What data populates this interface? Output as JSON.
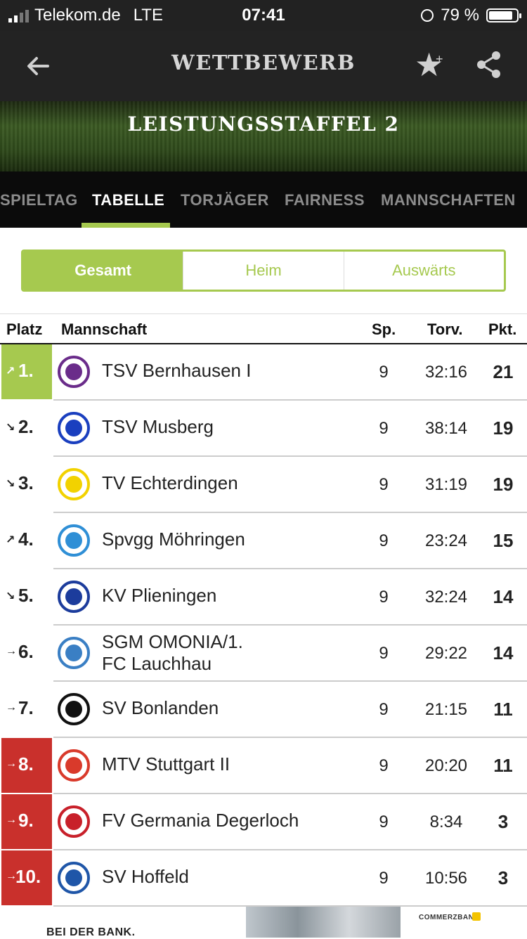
{
  "status": {
    "carrier": "Telekom.de",
    "network": "LTE",
    "time": "07:41",
    "battery": "79 %",
    "battery_level": 0.79
  },
  "appbar": {
    "title": "WETTBEWERB"
  },
  "banner": {
    "title": "LEISTUNGSSTAFFEL 2"
  },
  "tabs": [
    {
      "label": "SPIELTAG"
    },
    {
      "label": "TABELLE",
      "active": true
    },
    {
      "label": "TORJÄGER"
    },
    {
      "label": "FAIRNESS"
    },
    {
      "label": "MANNSCHAFTEN"
    }
  ],
  "segments": [
    {
      "label": "Gesamt",
      "active": true
    },
    {
      "label": "Heim"
    },
    {
      "label": "Auswärts"
    }
  ],
  "table": {
    "headers": {
      "platz": "Platz",
      "mannschaft": "Mannschaft",
      "sp": "Sp.",
      "torv": "Torv.",
      "pkt": "Pkt."
    },
    "rows": [
      {
        "rank": "1.",
        "trend": "up",
        "zone": "green",
        "team": "TSV Bernhausen I",
        "sp": "9",
        "torv": "32:16",
        "pkt": "21",
        "logo_color": "#6a2c8a"
      },
      {
        "rank": "2.",
        "trend": "down",
        "zone": "",
        "team": "TSV Musberg",
        "sp": "9",
        "torv": "38:14",
        "pkt": "19",
        "logo_color": "#1a3fbf"
      },
      {
        "rank": "3.",
        "trend": "down",
        "zone": "",
        "team": "TV Echterdingen",
        "sp": "9",
        "torv": "31:19",
        "pkt": "19",
        "logo_color": "#f2d200"
      },
      {
        "rank": "4.",
        "trend": "up",
        "zone": "",
        "team": "Spvgg Möhringen",
        "sp": "9",
        "torv": "23:24",
        "pkt": "15",
        "logo_color": "#2f8fd6"
      },
      {
        "rank": "5.",
        "trend": "down",
        "zone": "",
        "team": "KV Plieningen",
        "sp": "9",
        "torv": "32:24",
        "pkt": "14",
        "logo_color": "#1c3c9c"
      },
      {
        "rank": "6.",
        "trend": "same",
        "zone": "",
        "team_line1": "SGM OMONIA/1.",
        "team_line2": "FC Lauchhau",
        "sp": "9",
        "torv": "29:22",
        "pkt": "14",
        "logo_color": "#3a7fc4"
      },
      {
        "rank": "7.",
        "trend": "same",
        "zone": "",
        "team": "SV Bonlanden",
        "sp": "9",
        "torv": "21:15",
        "pkt": "11",
        "logo_color": "#111111"
      },
      {
        "rank": "8.",
        "trend": "same",
        "zone": "red",
        "team": "MTV Stuttgart II",
        "sp": "9",
        "torv": "20:20",
        "pkt": "11",
        "logo_color": "#d93a2b"
      },
      {
        "rank": "9.",
        "trend": "same",
        "zone": "red",
        "team": "FV Germania Degerloch",
        "sp": "9",
        "torv": "8:34",
        "pkt": "3",
        "logo_color": "#c8202a"
      },
      {
        "rank": "10.",
        "trend": "same",
        "zone": "red",
        "team": "SV Hoffeld",
        "sp": "9",
        "torv": "10:56",
        "pkt": "3",
        "logo_color": "#1f56a8"
      }
    ]
  },
  "ad": {
    "text": "BEI DER BANK.",
    "brand": "COMMERZBANK"
  },
  "colors": {
    "accent": "#a6c94f",
    "relegation": "#c9302c",
    "appbar": "#232323"
  }
}
